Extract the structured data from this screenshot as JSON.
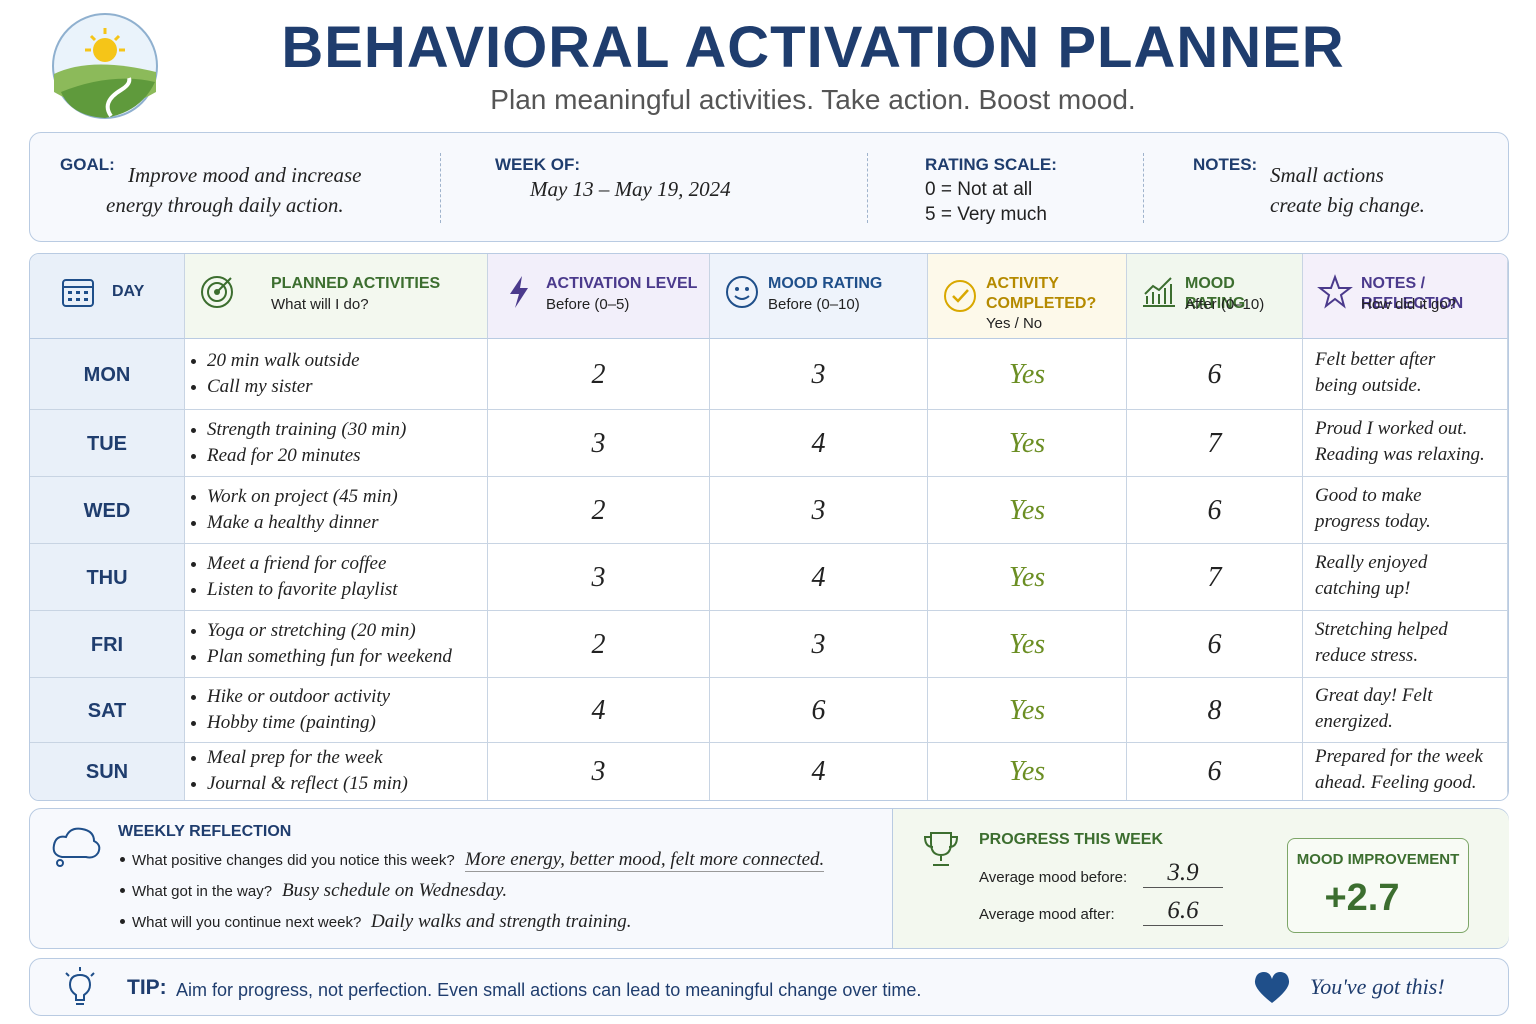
{
  "header": {
    "title": "BEHAVIORAL ACTIVATION PLANNER",
    "subtitle": "Plan meaningful activities. Take action. Boost mood."
  },
  "info": [
    {
      "label": "GOAL:",
      "lines": [
        "Improve mood and increase",
        "energy through daily action."
      ]
    },
    {
      "label": "WEEK OF:",
      "lines": [
        "May 13 – May 19, 2024"
      ]
    },
    {
      "label": "RATING SCALE:",
      "lines": [
        "0 = Not at all",
        "5 = Very much"
      ]
    },
    {
      "label": "NOTES:",
      "lines": [
        "Small actions",
        "create big change."
      ]
    }
  ],
  "table": {
    "columns": [
      {
        "title": "DAY"
      },
      {
        "title": "PLANNED ACTIVITIES",
        "sub": "What will I do?"
      },
      {
        "title": "ACTIVATION LEVEL",
        "sub": "Before (0–5)"
      },
      {
        "title": "MOOD RATING",
        "sub": "Before (0–10)"
      },
      {
        "title": "ACTIVITY COMPLETED?",
        "sub": "Yes / No"
      },
      {
        "title": "MOOD RATING",
        "sub": "After (0–10)"
      },
      {
        "title": "NOTES / REFLECTION",
        "sub": "How did it go?"
      }
    ],
    "rows": [
      {
        "day": "MON",
        "activities": [
          "20 min walk outside",
          "Call my sister"
        ],
        "activation": 2,
        "mood_before": 3,
        "completed": "Yes",
        "mood_after": 6,
        "notes": [
          "Felt better after",
          "being outside."
        ]
      },
      {
        "day": "TUE",
        "activities": [
          "Strength training (30 min)",
          "Read for 20 minutes"
        ],
        "activation": 3,
        "mood_before": 4,
        "completed": "Yes",
        "mood_after": 7,
        "notes": [
          "Proud I worked out.",
          "Reading was relaxing."
        ]
      },
      {
        "day": "WED",
        "activities": [
          "Work on project (45 min)",
          "Make a healthy dinner"
        ],
        "activation": 2,
        "mood_before": 3,
        "completed": "Yes",
        "mood_after": 6,
        "notes": [
          "Good to make",
          "progress today."
        ]
      },
      {
        "day": "THU",
        "activities": [
          "Meet a friend for coffee",
          "Listen to favorite playlist"
        ],
        "activation": 3,
        "mood_before": 4,
        "completed": "Yes",
        "mood_after": 7,
        "notes": [
          "Really enjoyed",
          "catching up!"
        ]
      },
      {
        "day": "FRI",
        "activities": [
          "Yoga or stretching (20 min)",
          "Plan something fun for weekend"
        ],
        "activation": 2,
        "mood_before": 3,
        "completed": "Yes",
        "mood_after": 6,
        "notes": [
          "Stretching helped",
          "reduce stress."
        ]
      },
      {
        "day": "SAT",
        "activities": [
          "Hike or outdoor activity",
          "Hobby time (painting)"
        ],
        "activation": 4,
        "mood_before": 6,
        "completed": "Yes",
        "mood_after": 8,
        "notes": [
          "Great day! Felt",
          "energized."
        ]
      },
      {
        "day": "SUN",
        "activities": [
          "Meal prep for the week",
          "Journal & reflect (15 min)"
        ],
        "activation": 3,
        "mood_before": 4,
        "completed": "Yes",
        "mood_after": 6,
        "notes": [
          "Prepared for the week",
          "ahead. Feeling good."
        ]
      }
    ]
  },
  "reflection": {
    "title": "WEEKLY REFLECTION",
    "items": [
      {
        "q": "What positive changes did you notice this week?",
        "a": "More energy, better mood, felt more connected."
      },
      {
        "q": "What got in the way?",
        "a": "Busy schedule on Wednesday."
      },
      {
        "q": "What will you continue next week?",
        "a": "Daily walks and strength training."
      }
    ]
  },
  "progress": {
    "title": "PROGRESS THIS WEEK",
    "before_label": "Average mood before:",
    "before": 3.9,
    "after_label": "Average mood after:",
    "after": 6.6,
    "improvement_label": "MOOD IMPROVEMENT",
    "improvement": "+2.7"
  },
  "tip": {
    "label": "TIP:",
    "text": "Aim for progress, not perfection. Even small actions can lead to meaningful change over time.",
    "closing": "You've got this!"
  }
}
